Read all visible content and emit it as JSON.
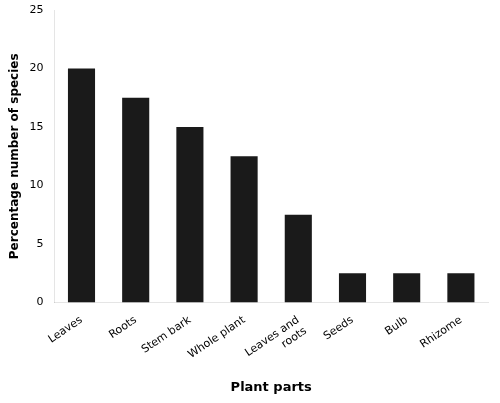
{
  "chart_data": {
    "type": "bar",
    "categories": [
      "Leaves",
      "Roots",
      "Stem bark",
      "Whole plant",
      "Leaves and\nroots",
      "Seeds",
      "Bulb",
      "Rhizome"
    ],
    "values": [
      20.0,
      17.5,
      15.0,
      12.5,
      7.5,
      2.5,
      2.5,
      2.5
    ],
    "color": "#1a1a1a",
    "xlabel": "Plant parts",
    "ylabel": "Percentage number of species",
    "ylim": [
      0,
      25
    ],
    "yticks": [
      0,
      5,
      10,
      15,
      20,
      25
    ],
    "grid": false
  }
}
